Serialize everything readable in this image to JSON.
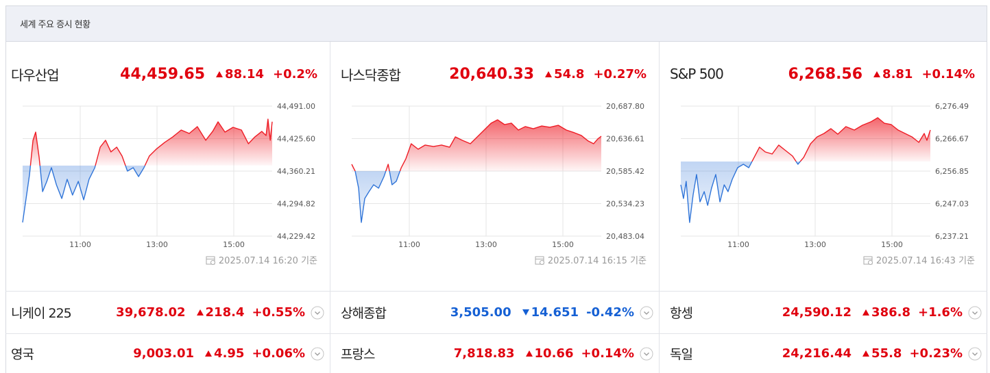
{
  "header": {
    "title": "세계 주요 증시 현황"
  },
  "colors": {
    "up": "#e0000f",
    "down": "#1560d4"
  },
  "panels": [
    {
      "name": "다우산업",
      "price": "44,459.65",
      "change": "88.14",
      "change_pct": "+0.2%",
      "direction": "up",
      "timestamp": "2025.07.14 16:20 기준",
      "chart_data": {
        "type": "line",
        "color_up": "#ee1c25",
        "color_down": "#2f74d8",
        "baseline": 44371.51,
        "grid": true,
        "x": [
          9.5,
          9.59,
          9.68,
          9.77,
          9.84,
          9.93,
          10.02,
          10.13,
          10.25,
          10.38,
          10.52,
          10.66,
          10.8,
          10.95,
          11.09,
          11.23,
          11.38,
          11.52,
          11.66,
          11.8,
          11.95,
          12.09,
          12.23,
          12.38,
          12.52,
          12.66,
          12.8,
          12.98,
          13.2,
          13.41,
          13.63,
          13.84,
          14.05,
          14.27,
          14.45,
          14.59,
          14.77,
          14.98,
          15.2,
          15.38,
          15.55,
          15.73,
          15.84,
          15.89,
          15.95,
          16
        ],
        "values": [
          44257.0,
          44305.1,
          44353.3,
          44422.2,
          44438.7,
          44387.7,
          44318.9,
          44339.6,
          44367.1,
          44332.7,
          44305.1,
          44343.7,
          44312.0,
          44339.6,
          44302.4,
          44343.7,
          44367.1,
          44408.4,
          44422.2,
          44398.8,
          44408.4,
          44390.5,
          44360.2,
          44367.1,
          44349.2,
          44367.1,
          44390.5,
          44404.3,
          44418.0,
          44429.0,
          44442.8,
          44435.9,
          44449.7,
          44422.2,
          44440.1,
          44459.3,
          44438.7,
          44448.3,
          44442.8,
          44415.3,
          44429.0,
          44440.1,
          44431.8,
          44464.8,
          44422.2,
          44459.6
        ],
        "xlim": [
          9.5,
          16
        ],
        "xticks": [
          {
            "value": 11,
            "label": "11:00"
          },
          {
            "value": 13,
            "label": "13:00"
          },
          {
            "value": 15,
            "label": "15:00"
          }
        ],
        "ylim": [
          44229.42,
          44491.0
        ],
        "yticks": [
          {
            "value": 44491.0,
            "label": "44,491.00"
          },
          {
            "value": 44425.6,
            "label": "44,425.60"
          },
          {
            "value": 44360.21,
            "label": "44,360.21"
          },
          {
            "value": 44294.82,
            "label": "44,294.82"
          },
          {
            "value": 44229.42,
            "label": "44,229.42"
          }
        ]
      }
    },
    {
      "name": "나스닥종합",
      "price": "20,640.33",
      "change": "54.8",
      "change_pct": "+0.27%",
      "direction": "up",
      "timestamp": "2025.07.14 16:15 기준",
      "chart_data": {
        "type": "line",
        "color_up": "#ee1c25",
        "color_down": "#2f74d8",
        "baseline": 20585.53,
        "grid": true,
        "x": [
          9.5,
          9.59,
          9.68,
          9.75,
          9.84,
          9.95,
          10.07,
          10.2,
          10.34,
          10.45,
          10.55,
          10.66,
          10.79,
          10.91,
          11.05,
          11.23,
          11.41,
          11.63,
          11.84,
          12.05,
          12.2,
          12.38,
          12.59,
          12.77,
          12.95,
          13.13,
          13.3,
          13.48,
          13.66,
          13.84,
          14.02,
          14.23,
          14.45,
          14.66,
          14.88,
          15.09,
          15.3,
          15.48,
          15.66,
          15.8,
          15.91,
          16
        ],
        "values": [
          20596.2,
          20585.4,
          20558.5,
          20504.6,
          20542.3,
          20553.1,
          20563.9,
          20558.5,
          20576.8,
          20596.2,
          20563.9,
          20569.3,
          20590.8,
          20604.8,
          20628.5,
          20619.9,
          20626.4,
          20624.2,
          20626.4,
          20623.1,
          20639.3,
          20633.9,
          20628.5,
          20639.3,
          20650.1,
          20660.9,
          20666.2,
          20658.7,
          20660.9,
          20650.1,
          20655.5,
          20652.2,
          20656.5,
          20654.4,
          20657.6,
          20650.1,
          20645.8,
          20641.5,
          20632.8,
          20628.5,
          20636.1,
          20640.3
        ],
        "xlim": [
          9.5,
          16
        ],
        "xticks": [
          {
            "value": 11,
            "label": "11:00"
          },
          {
            "value": 13,
            "label": "13:00"
          },
          {
            "value": 15,
            "label": "15:00"
          }
        ],
        "ylim": [
          20483.04,
          20687.8
        ],
        "yticks": [
          {
            "value": 20687.8,
            "label": "20,687.80"
          },
          {
            "value": 20636.61,
            "label": "20,636.61"
          },
          {
            "value": 20585.42,
            "label": "20,585.42"
          },
          {
            "value": 20534.23,
            "label": "20,534.23"
          },
          {
            "value": 20483.04,
            "label": "20,483.04"
          }
        ]
      }
    },
    {
      "name": "S&P 500",
      "price": "6,268.56",
      "change": "8.81",
      "change_pct": "+0.14%",
      "direction": "up",
      "timestamp": "2025.07.14 16:43 기준",
      "chart_data": {
        "type": "line",
        "color_up": "#ee1c25",
        "color_down": "#2f74d8",
        "baseline": 6259.75,
        "grid": true,
        "x": [
          9.5,
          9.57,
          9.64,
          9.73,
          9.82,
          9.91,
          10.0,
          10.11,
          10.2,
          10.3,
          10.41,
          10.52,
          10.63,
          10.73,
          10.84,
          10.98,
          11.13,
          11.27,
          11.41,
          11.55,
          11.7,
          11.88,
          12.05,
          12.23,
          12.41,
          12.55,
          12.7,
          12.88,
          13.05,
          13.23,
          13.41,
          13.59,
          13.8,
          14.02,
          14.23,
          14.45,
          14.63,
          14.8,
          14.98,
          15.16,
          15.34,
          15.52,
          15.7,
          15.84,
          15.91,
          16
        ],
        "values": [
          6252.71,
          6248.58,
          6253.75,
          6241.34,
          6249.61,
          6255.82,
          6247.55,
          6250.65,
          6246.51,
          6251.68,
          6255.82,
          6247.55,
          6252.71,
          6250.65,
          6254.37,
          6257.88,
          6258.92,
          6257.88,
          6260.98,
          6264.09,
          6262.64,
          6262.02,
          6264.71,
          6263.05,
          6261.4,
          6258.92,
          6260.98,
          6265.12,
          6267.19,
          6268.22,
          6269.67,
          6268.01,
          6270.29,
          6269.25,
          6270.7,
          6271.73,
          6272.98,
          6271.32,
          6270.91,
          6269.25,
          6268.22,
          6267.19,
          6265.53,
          6268.22,
          6266.15,
          6269.25
        ],
        "xlim": [
          9.5,
          16
        ],
        "xticks": [
          {
            "value": 11,
            "label": "11:00"
          },
          {
            "value": 13,
            "label": "13:00"
          },
          {
            "value": 15,
            "label": "15:00"
          }
        ],
        "ylim": [
          6237.21,
          6276.49
        ],
        "yticks": [
          {
            "value": 6276.49,
            "label": "6,276.49"
          },
          {
            "value": 6266.67,
            "label": "6,266.67"
          },
          {
            "value": 6256.85,
            "label": "6,256.85"
          },
          {
            "value": 6247.03,
            "label": "6,247.03"
          },
          {
            "value": 6237.21,
            "label": "6,237.21"
          }
        ]
      }
    }
  ],
  "other_markets": [
    {
      "name": "니케이 225",
      "price": "39,678.02",
      "change": "218.4",
      "change_pct": "+0.55%",
      "direction": "up"
    },
    {
      "name": "상해종합",
      "price": "3,505.00",
      "change": "14.651",
      "change_pct": "-0.42%",
      "direction": "down"
    },
    {
      "name": "항셍",
      "price": "24,590.12",
      "change": "386.8",
      "change_pct": "+1.6%",
      "direction": "up"
    },
    {
      "name": "영국",
      "price": "9,003.01",
      "change": "4.95",
      "change_pct": "+0.06%",
      "direction": "up"
    },
    {
      "name": "프랑스",
      "price": "7,818.83",
      "change": "10.66",
      "change_pct": "+0.14%",
      "direction": "up"
    },
    {
      "name": "독일",
      "price": "24,216.44",
      "change": "55.8",
      "change_pct": "+0.23%",
      "direction": "up"
    }
  ]
}
